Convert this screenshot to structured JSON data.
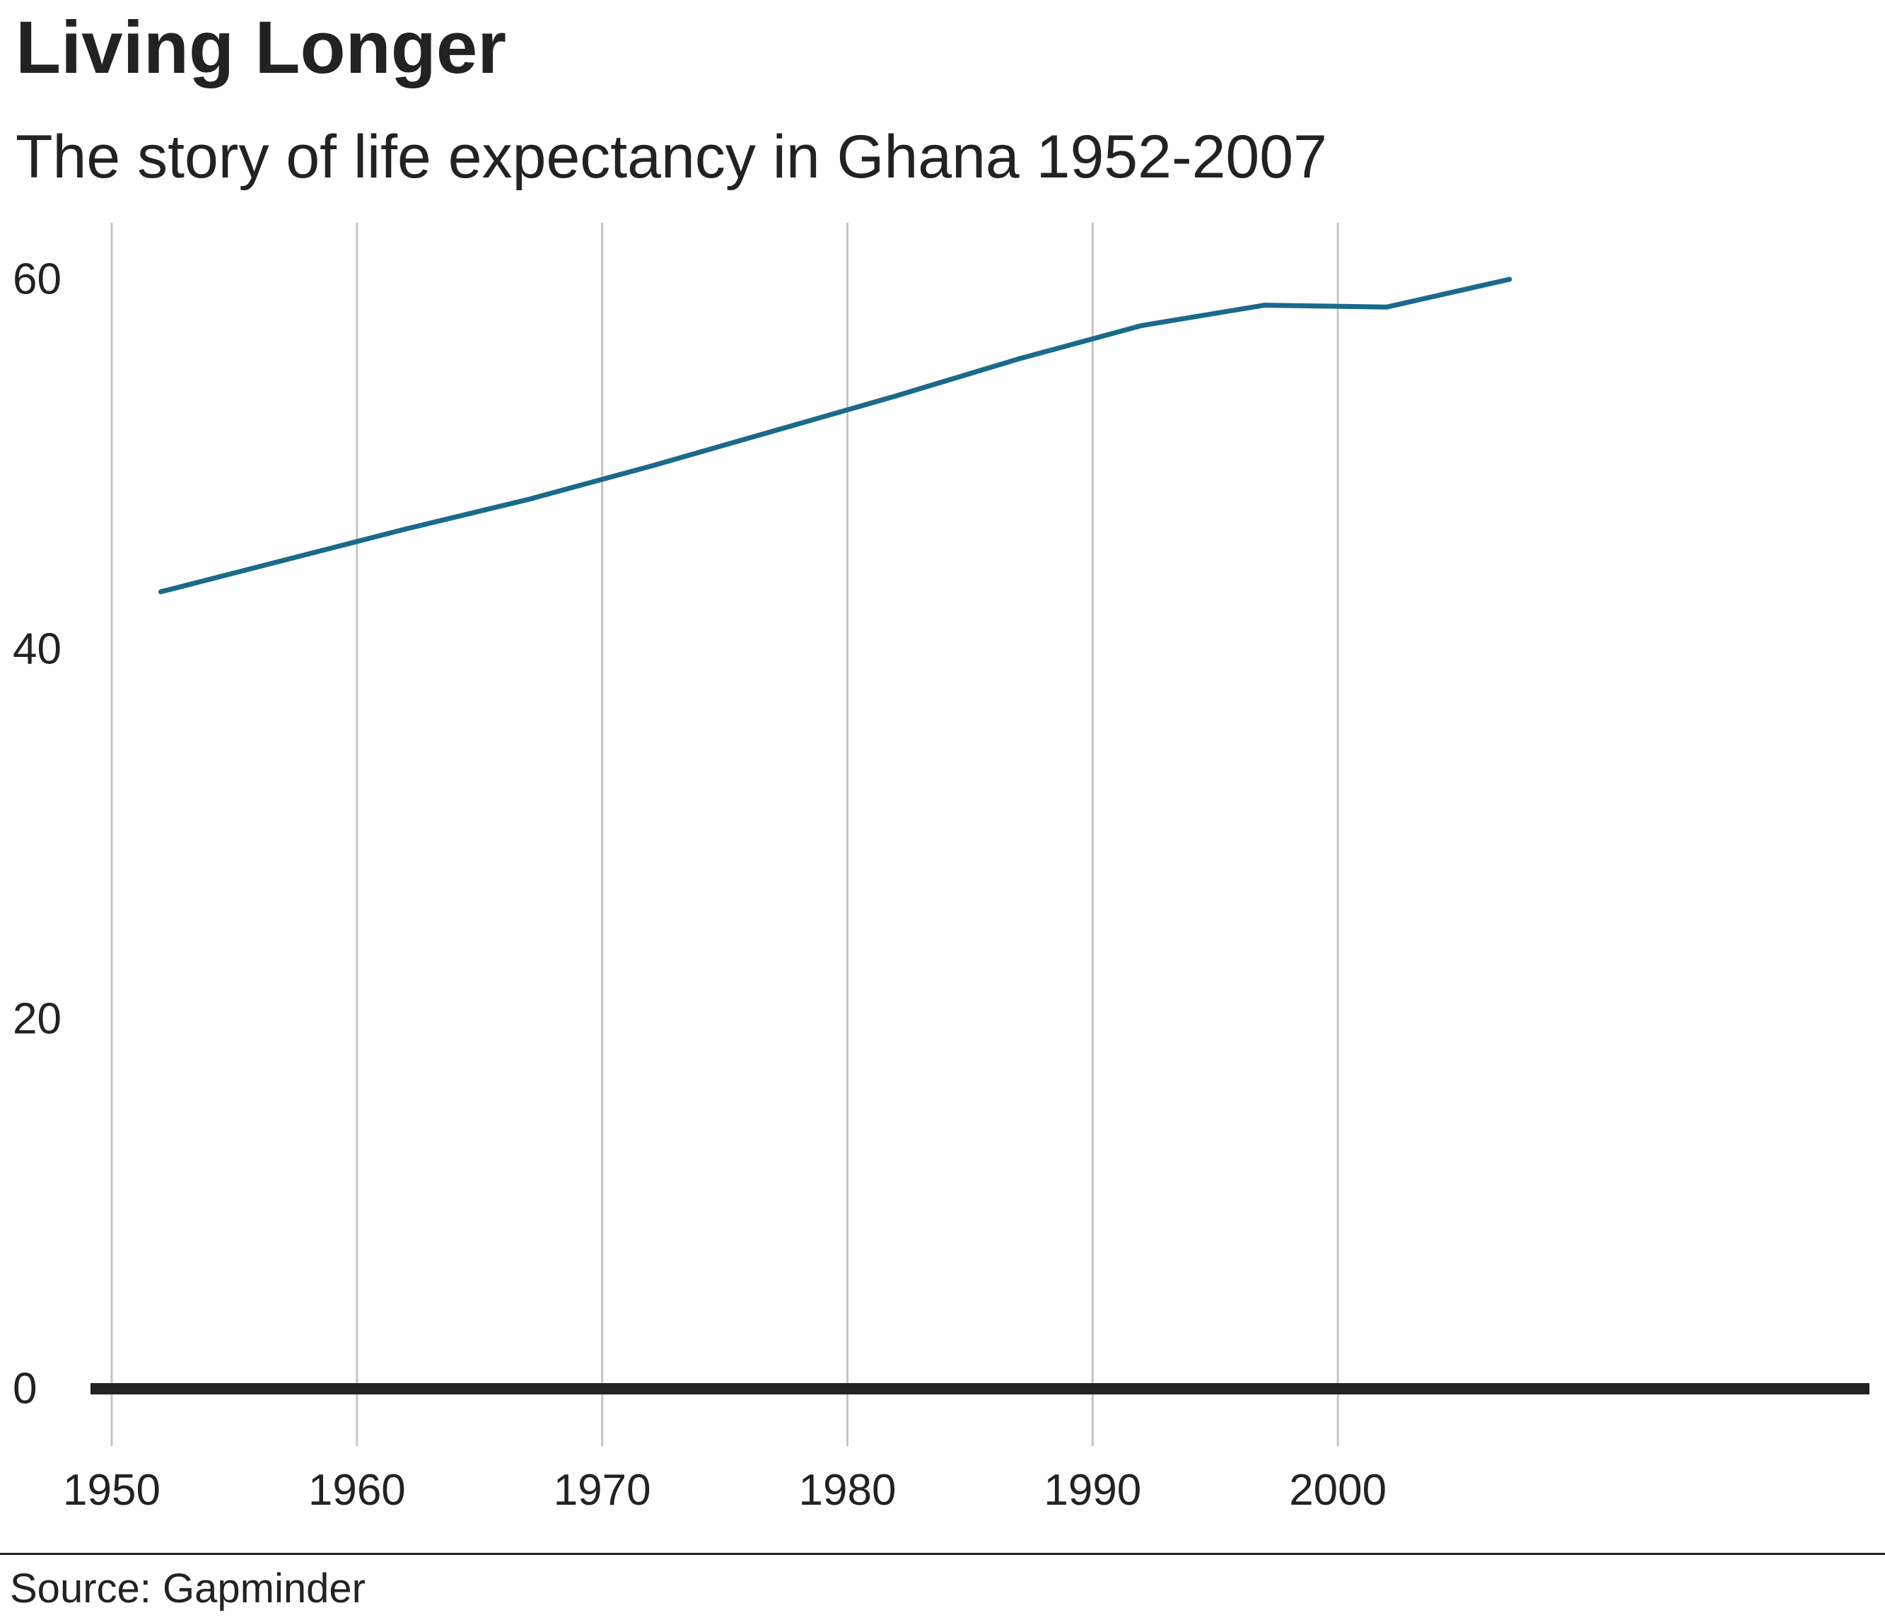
{
  "title": "Living Longer",
  "subtitle": "The story of life expectancy in Ghana 1952-2007",
  "source": "Source: Gapminder",
  "chart_data": {
    "type": "line",
    "title": "Living Longer",
    "subtitle": "The story of life expectancy in Ghana 1952-2007",
    "xlabel": "",
    "ylabel": "",
    "xlim": [
      1950,
      2010
    ],
    "ylim": [
      0,
      62
    ],
    "x_ticks": [
      1950,
      1960,
      1970,
      1980,
      1990,
      2000
    ],
    "y_ticks": [
      0,
      20,
      40,
      60
    ],
    "grid": "vertical",
    "legend": "none",
    "line_color": "#1a6a8c",
    "series": [
      {
        "x": [
          1952,
          1957,
          1962,
          1967,
          1972,
          1977,
          1982,
          1987,
          1992,
          1997,
          2002,
          2007
        ],
        "values": [
          43.1,
          44.8,
          46.5,
          48.1,
          49.9,
          51.8,
          53.7,
          55.7,
          57.5,
          58.6,
          58.5,
          60.0
        ]
      }
    ],
    "source": "Source: Gapminder"
  }
}
